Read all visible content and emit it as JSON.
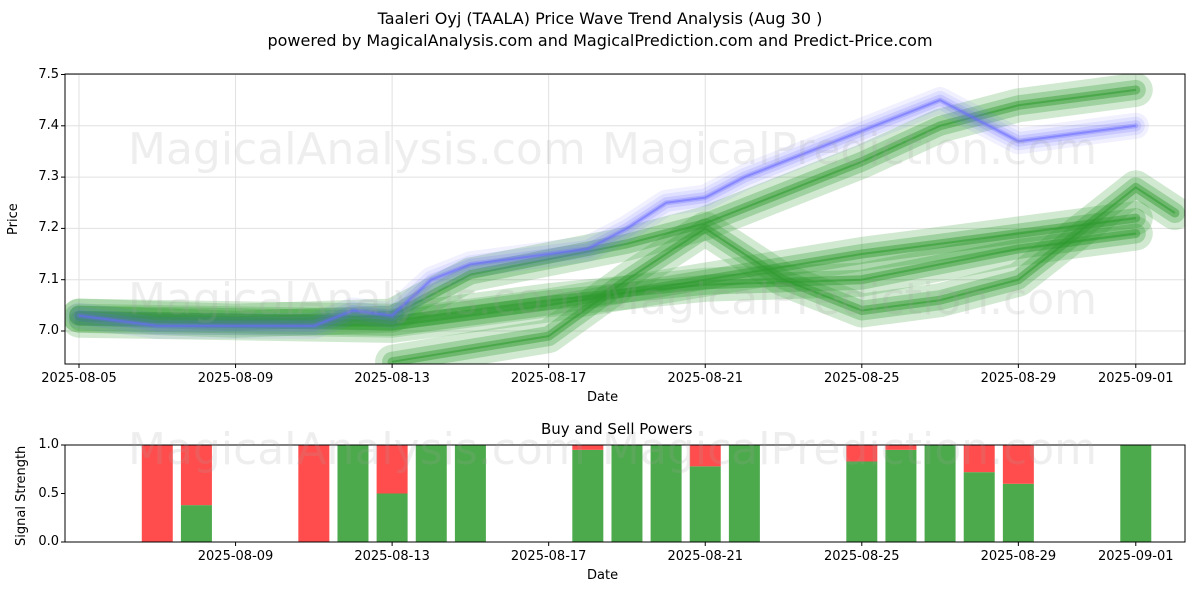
{
  "header": {
    "title": "Taaleri Oyj (TAALA) Price Wave Trend Analysis (Aug 30 )",
    "subtitle": "powered by MagicalAnalysis.com and MagicalPrediction.com and Predict-Price.com"
  },
  "watermarks": [
    "MagicalAnalysis.com",
    "MagicalPrediction.com"
  ],
  "colors": {
    "blue_band": "#6a6aff",
    "green_band": "#2e9a2e",
    "buy": "#4caa4c",
    "sell": "#ff4d4d"
  },
  "chart_data": [
    {
      "type": "area",
      "title": "",
      "xlabel": "Date",
      "ylabel": "Price",
      "ylim": [
        6.94,
        7.5
      ],
      "xlim": [
        "2025-08-05",
        "2025-09-02"
      ],
      "grid": true,
      "y_ticks": [
        "7.0",
        "7.1",
        "7.2",
        "7.3",
        "7.4",
        "7.5"
      ],
      "x_ticks": [
        "2025-08-05",
        "2025-08-09",
        "2025-08-13",
        "2025-08-17",
        "2025-08-21",
        "2025-08-25",
        "2025-08-29",
        "2025-09-01"
      ],
      "series": [
        {
          "color": "blue",
          "x": [
            "2025-08-05",
            "2025-08-06",
            "2025-08-07",
            "2025-08-08",
            "2025-08-09",
            "2025-08-10",
            "2025-08-11",
            "2025-08-12",
            "2025-08-13",
            "2025-08-14",
            "2025-08-15",
            "2025-08-16",
            "2025-08-17",
            "2025-08-18",
            "2025-08-19",
            "2025-08-20",
            "2025-08-21",
            "2025-08-22",
            "2025-08-23",
            "2025-08-24",
            "2025-08-25",
            "2025-08-26",
            "2025-08-27",
            "2025-08-28",
            "2025-08-29",
            "2025-08-30",
            "2025-08-31",
            "2025-09-01"
          ],
          "values": [
            7.03,
            7.02,
            7.01,
            7.01,
            7.01,
            7.01,
            7.01,
            7.04,
            7.03,
            7.1,
            7.13,
            7.14,
            7.15,
            7.16,
            7.2,
            7.25,
            7.26,
            7.3,
            7.33,
            7.36,
            7.39,
            7.42,
            7.45,
            7.41,
            7.37,
            7.38,
            7.39,
            7.4
          ]
        },
        {
          "color": "green",
          "x": [
            "2025-08-05",
            "2025-08-13",
            "2025-08-17",
            "2025-08-21",
            "2025-08-25",
            "2025-08-27",
            "2025-08-29",
            "2025-09-01"
          ],
          "values": [
            7.02,
            7.01,
            7.05,
            7.1,
            7.15,
            7.17,
            7.19,
            7.22
          ]
        },
        {
          "color": "green",
          "x": [
            "2025-08-05",
            "2025-08-09",
            "2025-08-13",
            "2025-08-15",
            "2025-08-17",
            "2025-08-19",
            "2025-08-21",
            "2025-08-23",
            "2025-08-25",
            "2025-08-27",
            "2025-08-29",
            "2025-09-01"
          ],
          "values": [
            7.03,
            7.02,
            7.03,
            7.11,
            7.14,
            7.17,
            7.21,
            7.27,
            7.33,
            7.4,
            7.44,
            7.47
          ]
        },
        {
          "color": "green",
          "x": [
            "2025-08-05",
            "2025-08-13",
            "2025-08-17",
            "2025-08-21",
            "2025-08-25",
            "2025-08-29",
            "2025-09-01"
          ],
          "values": [
            7.03,
            7.02,
            7.06,
            7.09,
            7.1,
            7.16,
            7.19
          ]
        },
        {
          "color": "green",
          "x": [
            "2025-08-13",
            "2025-08-17",
            "2025-08-19",
            "2025-08-21",
            "2025-08-23",
            "2025-08-25",
            "2025-08-27",
            "2025-08-29",
            "2025-09-01",
            "2025-09-02"
          ],
          "values": [
            6.94,
            6.99,
            7.1,
            7.2,
            7.1,
            7.04,
            7.06,
            7.1,
            7.28,
            7.23
          ]
        }
      ]
    },
    {
      "type": "bar",
      "title": "Buy and Sell Powers",
      "xlabel": "Date",
      "ylabel": "Signal Strength",
      "ylim": [
        0,
        1.0
      ],
      "y_ticks": [
        "0.0",
        "0.5",
        "1.0"
      ],
      "x_ticks": [
        "2025-08-09",
        "2025-08-13",
        "2025-08-17",
        "2025-08-21",
        "2025-08-25",
        "2025-08-29",
        "2025-09-01"
      ],
      "categories": [
        "2025-08-07",
        "2025-08-08",
        "2025-08-11",
        "2025-08-12",
        "2025-08-13",
        "2025-08-14",
        "2025-08-15",
        "2025-08-18",
        "2025-08-19",
        "2025-08-20",
        "2025-08-21",
        "2025-08-22",
        "2025-08-25",
        "2025-08-26",
        "2025-08-27",
        "2025-08-28",
        "2025-08-29",
        "2025-09-01"
      ],
      "series": [
        {
          "name": "Buy",
          "values": [
            0,
            0.38,
            0,
            1,
            0.5,
            1,
            1,
            0.95,
            1,
            1,
            0.78,
            1,
            0.83,
            0.95,
            1,
            0.72,
            0.6,
            1
          ]
        },
        {
          "name": "Sell",
          "values": [
            1,
            0.62,
            1,
            0,
            0.5,
            0,
            0,
            0.05,
            0,
            0,
            0.22,
            0,
            0.17,
            0.05,
            0,
            0.28,
            0.4,
            0
          ]
        }
      ]
    }
  ]
}
